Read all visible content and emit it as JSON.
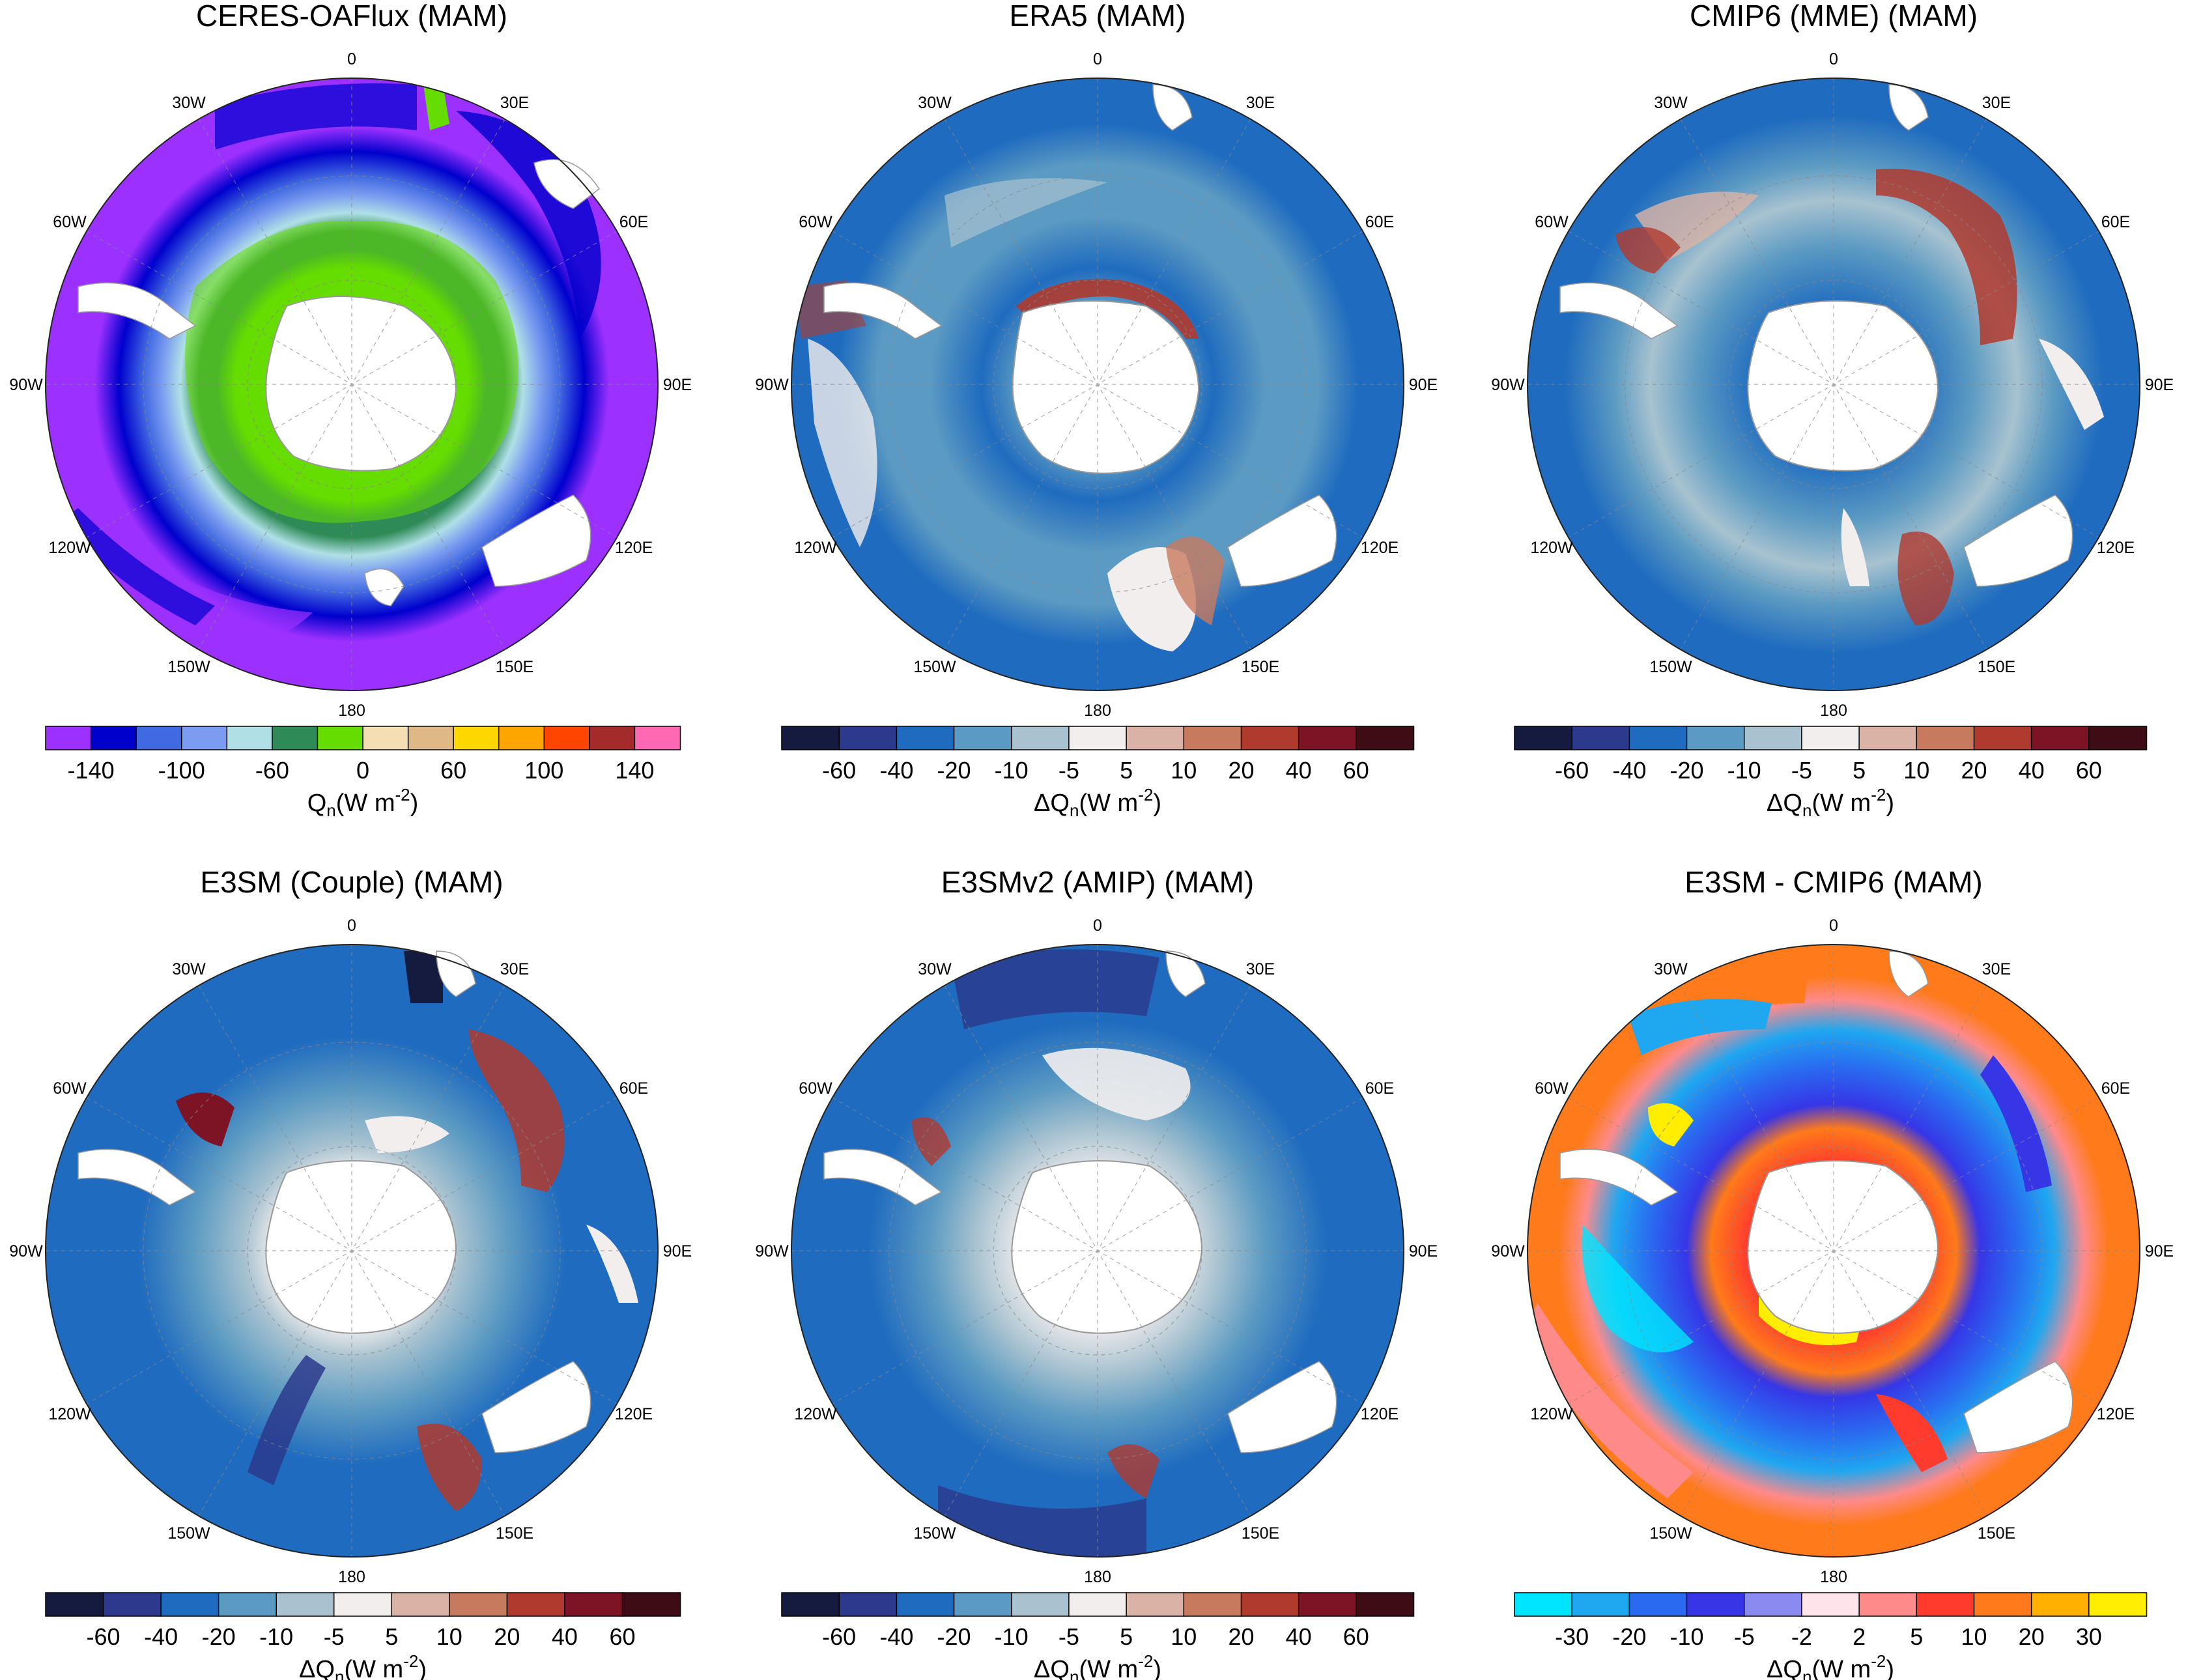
{
  "figure": {
    "season": "MAM",
    "lon_labels": [
      "0",
      "30E",
      "60E",
      "90E",
      "120E",
      "150E",
      "180",
      "150W",
      "120W",
      "90W",
      "60W",
      "30W"
    ]
  },
  "panels": [
    {
      "id": "ceres",
      "title": "CERES-OAFlux  (MAM)",
      "scale": "qn",
      "cbar_sub": "n",
      "cbar_delta": false
    },
    {
      "id": "era5",
      "title": "ERA5  (MAM)",
      "scale": "dqn",
      "cbar_sub": "n",
      "cbar_delta": true
    },
    {
      "id": "cmip6",
      "title": "CMIP6 (MME)  (MAM)",
      "scale": "dqn",
      "cbar_sub": "n",
      "cbar_delta": true
    },
    {
      "id": "e3sm",
      "title": "E3SM (Couple)  (MAM)",
      "scale": "dqn",
      "cbar_sub": "n",
      "cbar_delta": true
    },
    {
      "id": "e3smv2",
      "title": "E3SMv2 (AMIP)  (MAM)",
      "scale": "dqn",
      "cbar_sub": "n",
      "cbar_delta": true
    },
    {
      "id": "diff",
      "title": "E3SM - CMIP6  (MAM)",
      "scale": "diff",
      "cbar_sub": "n",
      "cbar_delta": true
    }
  ],
  "colorbars": {
    "qn": {
      "label_main": "Q",
      "label_unit": "(W m",
      "label_exp": "-2",
      "label_close": ")",
      "colors": [
        "#9b30ff",
        "#0000cd",
        "#4169e1",
        "#7b9cf0",
        "#b0e0e6",
        "#2e8b57",
        "#66dd00",
        "#f5deb3",
        "#deb887",
        "#ffd700",
        "#ffa500",
        "#ff4500",
        "#a52a2a",
        "#ff69b4"
      ],
      "ticks": [
        "-140",
        "-100",
        "-60",
        "0",
        "60",
        "100",
        "140"
      ],
      "tick_index": [
        1,
        3,
        5,
        7,
        9,
        11,
        13
      ]
    },
    "dqn": {
      "label_main": "ΔQ",
      "label_unit": "(W m",
      "label_exp": "-2",
      "label_close": ")",
      "colors": [
        "#151b3e",
        "#2b3a8c",
        "#1f6bbf",
        "#5b9ac2",
        "#a8c2d0",
        "#f2eeee",
        "#dbb3a6",
        "#c87a5f",
        "#b03a2e",
        "#7d1426",
        "#3d0c14"
      ],
      "ticks": [
        "-60",
        "-40",
        "-20",
        "-10",
        "-5",
        "5",
        "10",
        "20",
        "40",
        "60"
      ],
      "tick_index": [
        1,
        2,
        3,
        4,
        5,
        6,
        7,
        8,
        9,
        10
      ]
    },
    "diff": {
      "label_main": "ΔQ",
      "label_unit": "(W m",
      "label_exp": "-2",
      "label_close": ")",
      "colors": [
        "#00e5ff",
        "#1fa7f0",
        "#2a6af0",
        "#3636e6",
        "#8a8af0",
        "#ffe4ec",
        "#ff8a8a",
        "#ff3b2e",
        "#ff7a1a",
        "#ffb000",
        "#ffee00"
      ],
      "ticks": [
        "-30",
        "-20",
        "-10",
        "-5",
        "-2",
        "2",
        "5",
        "10",
        "20",
        "30"
      ],
      "tick_index": [
        1,
        2,
        3,
        4,
        5,
        6,
        7,
        8,
        9,
        10
      ]
    }
  }
}
